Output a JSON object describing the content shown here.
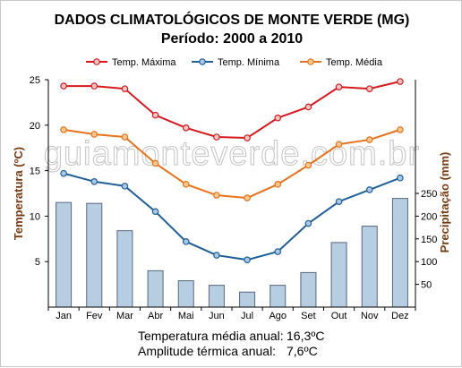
{
  "chart_data": {
    "type": "line+bar",
    "title": "DADOS CLIMATOLÓGICOS DE MONTE VERDE (MG)",
    "subtitle": "Período: 2000 a 2010",
    "categories": [
      "Jan",
      "Fev",
      "Mar",
      "Abr",
      "Mai",
      "Jun",
      "Jul",
      "Ago",
      "Set",
      "Out",
      "Nov",
      "Dez"
    ],
    "series": [
      {
        "name": "Temp. Máxima",
        "axis": "left",
        "kind": "line",
        "color": "#d7191c",
        "values": [
          24.3,
          24.3,
          24.0,
          21.1,
          19.7,
          18.7,
          18.6,
          20.8,
          22.0,
          24.2,
          24.0,
          24.8
        ]
      },
      {
        "name": "Temp. Mínima",
        "axis": "left",
        "kind": "line",
        "color": "#1f5f9a",
        "values": [
          14.7,
          13.8,
          13.3,
          10.5,
          7.2,
          5.7,
          5.2,
          6.1,
          9.2,
          11.6,
          12.9,
          14.2
        ]
      },
      {
        "name": "Temp. Média",
        "axis": "left",
        "kind": "line",
        "color": "#e8711b",
        "values": [
          19.5,
          19.0,
          18.7,
          15.8,
          13.5,
          12.3,
          12.0,
          13.5,
          15.6,
          17.9,
          18.4,
          19.5
        ]
      },
      {
        "name": "Precipitação",
        "axis": "right",
        "kind": "bar",
        "color": "#b7cde2",
        "values": [
          230,
          228,
          168,
          80,
          58,
          48,
          33,
          48,
          76,
          142,
          178,
          239
        ]
      }
    ],
    "y_left": {
      "label": "Temperatura (ºC)",
      "ticks": [
        5,
        10,
        15,
        20,
        25
      ],
      "range": [
        0,
        25
      ]
    },
    "y_right": {
      "label": "Precipitação (mm)",
      "ticks": [
        50,
        100,
        150,
        200,
        250
      ],
      "range": [
        0,
        500
      ]
    },
    "legend_position": "top",
    "watermark": "guiamonteverde.com.br",
    "annotations": [
      {
        "label": "Temperatura média anual:",
        "value": "16,3ºC"
      },
      {
        "label": "Amplitude térmica anual:",
        "value": "7,6ºC"
      }
    ]
  },
  "colors": {
    "left_axis_title": "#7a3a10",
    "right_axis_title": "#7a3a10",
    "bar_stroke": "#56687c"
  }
}
